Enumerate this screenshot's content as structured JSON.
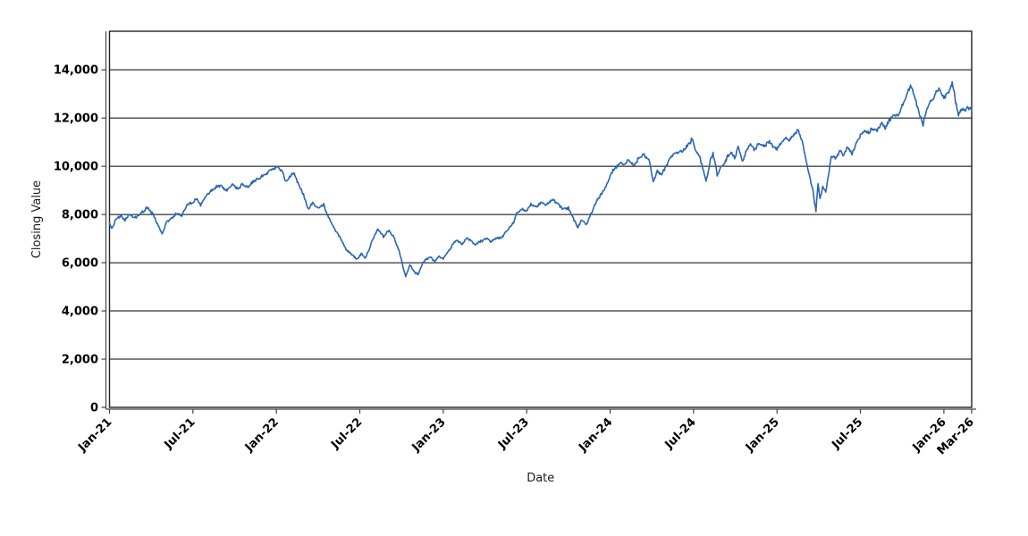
{
  "figure": {
    "background": "#ffffff",
    "frame_color": "#222222",
    "grid_color": "#000000",
    "axis_color": "#444444",
    "text_color": "#000000"
  },
  "chart_data": {
    "type": "line",
    "title": "",
    "xlabel": "Date",
    "ylabel": "Closing Value",
    "x_unit": "months since Jan-2021",
    "xlim": [
      0,
      62
    ],
    "ylim": [
      0,
      15600
    ],
    "grid": "horizontal-only",
    "legend": "none",
    "y_ticks": [
      {
        "v": 0,
        "label": "0"
      },
      {
        "v": 2000,
        "label": "2,000"
      },
      {
        "v": 4000,
        "label": "4,000"
      },
      {
        "v": 6000,
        "label": "6,000"
      },
      {
        "v": 8000,
        "label": "8,000"
      },
      {
        "v": 10000,
        "label": "10,000"
      },
      {
        "v": 12000,
        "label": "12,000"
      },
      {
        "v": 14000,
        "label": "14,000"
      }
    ],
    "x_ticks": [
      {
        "m": 0,
        "label": "Jan-21"
      },
      {
        "m": 6,
        "label": "Jul-21"
      },
      {
        "m": 12,
        "label": "Jan-22"
      },
      {
        "m": 18,
        "label": "Jul-22"
      },
      {
        "m": 24,
        "label": "Jan-23"
      },
      {
        "m": 30,
        "label": "Jul-23"
      },
      {
        "m": 36,
        "label": "Jan-24"
      },
      {
        "m": 42,
        "label": "Jul-24"
      },
      {
        "m": 48,
        "label": "Jan-25"
      },
      {
        "m": 54,
        "label": "Jul-25"
      },
      {
        "m": 60,
        "label": "Jan-26"
      },
      {
        "m": 62,
        "label": "Mar-26"
      }
    ],
    "series": [
      {
        "name": "Closing Value",
        "color": "#2a66b3",
        "points": [
          [
            0,
            7650
          ],
          [
            0.15,
            7450
          ],
          [
            0.5,
            7800
          ],
          [
            0.8,
            7950
          ],
          [
            1.1,
            7800
          ],
          [
            1.5,
            8050
          ],
          [
            1.9,
            7900
          ],
          [
            2.3,
            8100
          ],
          [
            2.7,
            8300
          ],
          [
            3.1,
            8050
          ],
          [
            3.5,
            7600
          ],
          [
            3.8,
            7200
          ],
          [
            4.1,
            7650
          ],
          [
            4.5,
            7900
          ],
          [
            4.9,
            8050
          ],
          [
            5.2,
            7950
          ],
          [
            5.6,
            8400
          ],
          [
            6,
            8550
          ],
          [
            6.3,
            8700
          ],
          [
            6.55,
            8400
          ],
          [
            7,
            8900
          ],
          [
            7.5,
            9150
          ],
          [
            8,
            9200
          ],
          [
            8.4,
            8950
          ],
          [
            8.8,
            9250
          ],
          [
            9.2,
            9150
          ],
          [
            9.6,
            9300
          ],
          [
            10,
            9200
          ],
          [
            10.4,
            9400
          ],
          [
            10.8,
            9500
          ],
          [
            11.3,
            9700
          ],
          [
            11.8,
            9850
          ],
          [
            12.1,
            9920
          ],
          [
            12.4,
            9750
          ],
          [
            12.7,
            9350
          ],
          [
            13,
            9550
          ],
          [
            13.3,
            9720
          ],
          [
            13.7,
            9100
          ],
          [
            14,
            8750
          ],
          [
            14.3,
            8200
          ],
          [
            14.6,
            8500
          ],
          [
            15,
            8300
          ],
          [
            15.4,
            8450
          ],
          [
            15.8,
            7900
          ],
          [
            16.2,
            7450
          ],
          [
            16.6,
            7050
          ],
          [
            17,
            6600
          ],
          [
            17.4,
            6350
          ],
          [
            17.8,
            6100
          ],
          [
            18.1,
            6350
          ],
          [
            18.4,
            6200
          ],
          [
            18.8,
            6800
          ],
          [
            19.3,
            7450
          ],
          [
            19.7,
            7150
          ],
          [
            20.1,
            7350
          ],
          [
            20.5,
            6950
          ],
          [
            20.9,
            6300
          ],
          [
            21.15,
            5700
          ],
          [
            21.3,
            5400
          ],
          [
            21.6,
            5850
          ],
          [
            21.9,
            5600
          ],
          [
            22.2,
            5500
          ],
          [
            22.5,
            5950
          ],
          [
            22.8,
            6150
          ],
          [
            23.1,
            6250
          ],
          [
            23.4,
            6000
          ],
          [
            23.7,
            6250
          ],
          [
            24,
            6150
          ],
          [
            24.3,
            6400
          ],
          [
            24.7,
            6800
          ],
          [
            25,
            6900
          ],
          [
            25.3,
            6700
          ],
          [
            25.7,
            6950
          ],
          [
            26,
            6850
          ],
          [
            26.3,
            6650
          ],
          [
            26.7,
            6850
          ],
          [
            27,
            6950
          ],
          [
            27.4,
            6850
          ],
          [
            27.8,
            7000
          ],
          [
            28.2,
            7050
          ],
          [
            28.6,
            7300
          ],
          [
            29,
            7700
          ],
          [
            29.3,
            8050
          ],
          [
            29.7,
            8300
          ],
          [
            30,
            8150
          ],
          [
            30.3,
            8450
          ],
          [
            30.7,
            8300
          ],
          [
            31,
            8550
          ],
          [
            31.4,
            8400
          ],
          [
            31.8,
            8650
          ],
          [
            32.2,
            8500
          ],
          [
            32.6,
            8150
          ],
          [
            33,
            8250
          ],
          [
            33.4,
            7800
          ],
          [
            33.7,
            7500
          ],
          [
            34,
            7750
          ],
          [
            34.3,
            7600
          ],
          [
            34.7,
            8100
          ],
          [
            35,
            8500
          ],
          [
            35.4,
            8900
          ],
          [
            35.7,
            9200
          ],
          [
            36,
            9550
          ],
          [
            36.3,
            9900
          ],
          [
            36.7,
            10150
          ],
          [
            37,
            10000
          ],
          [
            37.3,
            10250
          ],
          [
            37.7,
            10100
          ],
          [
            38,
            10300
          ],
          [
            38.4,
            10500
          ],
          [
            38.8,
            10350
          ],
          [
            39.1,
            9400
          ],
          [
            39.4,
            9800
          ],
          [
            39.7,
            9650
          ],
          [
            40,
            10000
          ],
          [
            40.4,
            10350
          ],
          [
            40.8,
            10550
          ],
          [
            41.2,
            10650
          ],
          [
            41.6,
            10950
          ],
          [
            41.9,
            11200
          ],
          [
            42.2,
            10650
          ],
          [
            42.5,
            10300
          ],
          [
            42.9,
            9350
          ],
          [
            43.2,
            10200
          ],
          [
            43.4,
            10500
          ],
          [
            43.7,
            9650
          ],
          [
            44,
            9950
          ],
          [
            44.3,
            10300
          ],
          [
            44.7,
            10650
          ],
          [
            45,
            10400
          ],
          [
            45.2,
            10900
          ],
          [
            45.5,
            10200
          ],
          [
            45.8,
            10600
          ],
          [
            46.1,
            10900
          ],
          [
            46.4,
            10700
          ],
          [
            46.7,
            11000
          ],
          [
            47,
            10800
          ],
          [
            47.3,
            11050
          ],
          [
            47.6,
            10850
          ],
          [
            48,
            10600
          ],
          [
            48.3,
            10950
          ],
          [
            48.6,
            11150
          ],
          [
            48.9,
            11000
          ],
          [
            49.2,
            11350
          ],
          [
            49.5,
            11550
          ],
          [
            49.8,
            11000
          ],
          [
            50.1,
            10200
          ],
          [
            50.4,
            9500
          ],
          [
            50.6,
            8900
          ],
          [
            50.8,
            8150
          ],
          [
            50.95,
            9250
          ],
          [
            51.1,
            8650
          ],
          [
            51.3,
            9150
          ],
          [
            51.5,
            9000
          ],
          [
            51.7,
            9600
          ],
          [
            51.9,
            10450
          ],
          [
            52.2,
            10300
          ],
          [
            52.5,
            10550
          ],
          [
            52.8,
            10400
          ],
          [
            53.1,
            10750
          ],
          [
            53.4,
            10550
          ],
          [
            53.7,
            11000
          ],
          [
            54,
            11300
          ],
          [
            54.3,
            11500
          ],
          [
            54.6,
            11350
          ],
          [
            54.9,
            11600
          ],
          [
            55.2,
            11450
          ],
          [
            55.5,
            11750
          ],
          [
            55.8,
            11550
          ],
          [
            56.1,
            11950
          ],
          [
            56.4,
            12200
          ],
          [
            56.7,
            12100
          ],
          [
            57,
            12500
          ],
          [
            57.3,
            12900
          ],
          [
            57.6,
            13300
          ],
          [
            57.9,
            12900
          ],
          [
            58.2,
            12250
          ],
          [
            58.5,
            11700
          ],
          [
            58.8,
            12400
          ],
          [
            59.1,
            12750
          ],
          [
            59.4,
            13000
          ],
          [
            59.7,
            13200
          ],
          [
            60,
            12900
          ],
          [
            60.3,
            13100
          ],
          [
            60.6,
            13480
          ],
          [
            60.85,
            12600
          ],
          [
            61.05,
            12050
          ],
          [
            61.3,
            12400
          ],
          [
            61.5,
            12250
          ],
          [
            61.75,
            12350
          ],
          [
            62,
            12250
          ]
        ]
      }
    ]
  }
}
